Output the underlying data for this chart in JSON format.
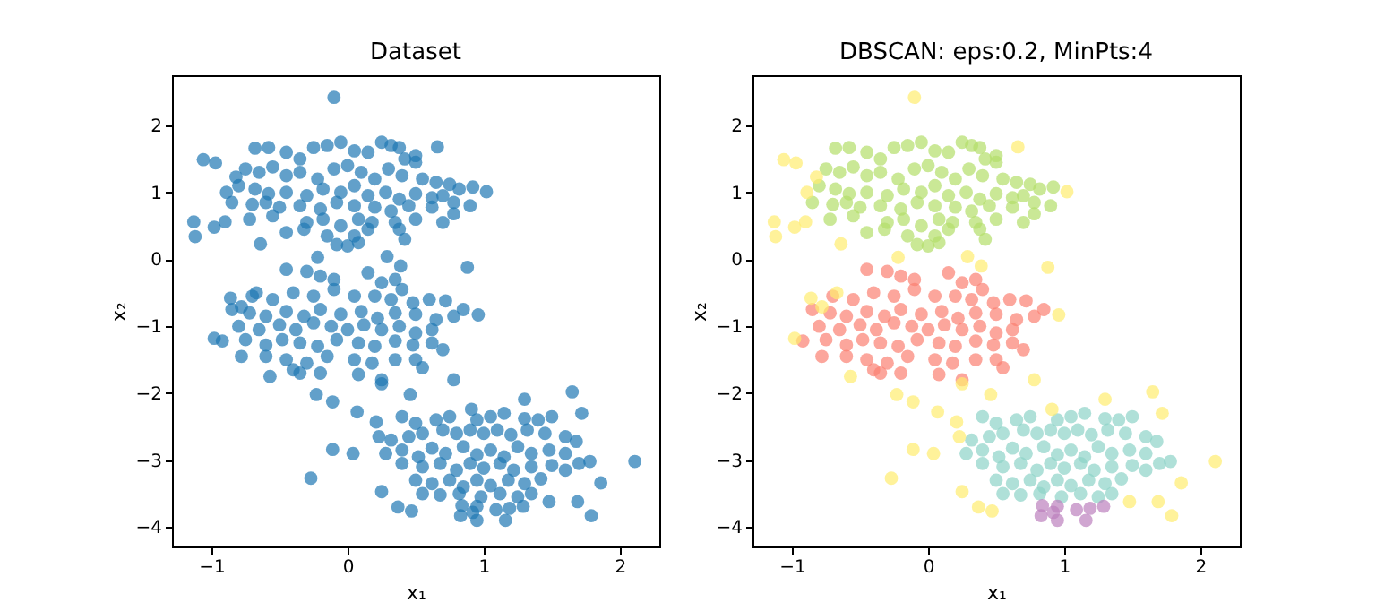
{
  "chart_data": [
    {
      "type": "scatter",
      "title": "Dataset",
      "xlabel": "x₁",
      "ylabel": "x₂",
      "xlim": [
        -1.29,
        2.29
      ],
      "ylim": [
        -4.29,
        2.75
      ],
      "xticks": [
        -1,
        0,
        1,
        2
      ],
      "yticks": [
        -4,
        -3,
        -2,
        -1,
        0,
        1,
        2
      ],
      "grid": false,
      "legend": false,
      "marker": "circle",
      "series": [
        {
          "color": "#1f77b4",
          "x": [
            -0.68,
            -0.58,
            -0.45,
            -0.35,
            -0.25,
            -0.15,
            -0.05,
            0.05,
            0.15,
            0.25,
            0.32,
            0.38,
            0.5,
            0.5,
            0.42,
            -0.75,
            -0.65,
            -0.55,
            -0.45,
            -0.35,
            -0.22,
            -0.1,
            0.0,
            0.1,
            0.2,
            0.3,
            0.4,
            0.55,
            0.65,
            0.75,
            0.82,
            0.92,
            -0.8,
            -0.68,
            -0.58,
            -0.45,
            -0.3,
            -0.18,
            -0.05,
            0.05,
            0.15,
            0.28,
            0.38,
            0.5,
            0.62,
            0.7,
            -0.85,
            -0.7,
            -0.6,
            -0.5,
            -0.35,
            -0.2,
            -0.08,
            0.05,
            0.2,
            0.32,
            0.45,
            0.62,
            0.78,
            0.9,
            -0.72,
            -0.55,
            -0.3,
            -0.18,
            -0.05,
            0.08,
            0.18,
            0.35,
            0.5,
            0.7,
            0.78,
            -0.45,
            -0.32,
            -0.15,
            0.05,
            0.15,
            0.38,
            0.42,
            0.0,
            -0.08,
            0.08,
            -0.45,
            -0.3,
            -0.2,
            -0.1,
            0.15,
            0.25,
            0.35,
            0.4,
            -0.7,
            -0.55,
            -0.4,
            -0.25,
            -0.1,
            0.05,
            0.2,
            0.32,
            0.48,
            0.6,
            0.72,
            0.85,
            -0.85,
            -0.72,
            -0.6,
            -0.45,
            -0.32,
            -0.2,
            -0.05,
            0.1,
            0.22,
            0.35,
            0.5,
            0.65,
            0.78,
            -0.8,
            -0.65,
            -0.5,
            -0.38,
            -0.25,
            -0.12,
            0.0,
            0.12,
            0.25,
            0.38,
            0.5,
            0.62,
            -0.92,
            -0.75,
            -0.6,
            -0.48,
            -0.35,
            -0.22,
            -0.08,
            0.08,
            0.2,
            0.35,
            0.48,
            0.62,
            0.7,
            -0.78,
            -0.6,
            -0.45,
            -0.3,
            -0.15,
            0.05,
            0.18,
            0.35,
            0.5,
            0.55,
            -0.4,
            -0.2,
            0.08,
            0.25,
            -0.35,
            0.4,
            0.5,
            0.65,
            0.75,
            0.95,
            1.05,
            1.15,
            1.3,
            1.4,
            1.5,
            0.32,
            0.45,
            0.55,
            0.7,
            0.8,
            0.9,
            1.0,
            1.1,
            1.2,
            1.32,
            1.45,
            1.6,
            1.68,
            0.28,
            0.4,
            0.52,
            0.62,
            0.72,
            0.85,
            0.95,
            1.05,
            1.15,
            1.25,
            1.35,
            1.48,
            1.6,
            1.7,
            1.78,
            0.4,
            0.55,
            0.68,
            0.8,
            0.9,
            1.0,
            1.12,
            1.22,
            1.35,
            1.5,
            1.6,
            0.5,
            0.62,
            0.75,
            0.85,
            0.95,
            1.05,
            1.18,
            1.3,
            1.42,
            0.55,
            0.68,
            0.82,
            0.98,
            1.12,
            1.25,
            1.35,
            0.84,
            0.83,
            0.95,
            0.95,
            1.09,
            1.16,
            1.19,
            1.29,
            0.92,
            -0.1,
            -1.06,
            -0.97,
            -0.82,
            -0.89,
            -1.13,
            -1.12,
            -0.98,
            -0.9,
            -0.64,
            0.66,
            1.02,
            -0.22,
            0.29,
            0.39,
            0.88,
            -0.67,
            -0.86,
            -0.78,
            0.96,
            -0.98,
            -0.57,
            0.25,
            0.78,
            -0.23,
            -0.11,
            0.46,
            0.07,
            0.21,
            0.23,
            0.91,
            1.3,
            1.65,
            1.72,
            -0.11,
            0.04,
            -0.27,
            0.25,
            0.37,
            0.47,
            1.48,
            1.69,
            1.79,
            1.86,
            2.11
          ],
          "values": [
            1.66,
            1.67,
            1.6,
            1.5,
            1.67,
            1.7,
            1.75,
            1.62,
            1.6,
            1.75,
            1.7,
            1.67,
            1.55,
            1.45,
            1.5,
            1.35,
            1.3,
            1.38,
            1.25,
            1.3,
            1.2,
            1.35,
            1.4,
            1.3,
            1.2,
            1.35,
            1.25,
            1.2,
            1.15,
            1.12,
            1.05,
            1.08,
            1.1,
            1.05,
            0.98,
            1.0,
            0.95,
            1.05,
            1.0,
            1.1,
            0.95,
            1.0,
            0.9,
            0.98,
            0.92,
            0.95,
            0.85,
            0.82,
            0.85,
            0.78,
            0.8,
            0.75,
            0.85,
            0.8,
            0.78,
            0.72,
            0.8,
            0.78,
            0.85,
            0.8,
            0.6,
            0.65,
            0.55,
            0.6,
            0.5,
            0.6,
            0.55,
            0.55,
            0.6,
            0.55,
            0.68,
            0.4,
            0.45,
            0.35,
            0.35,
            0.45,
            0.45,
            0.3,
            0.2,
            0.22,
            0.25,
            -0.15,
            -0.18,
            -0.25,
            -0.3,
            -0.2,
            -0.35,
            -0.3,
            -0.45,
            -0.55,
            -0.6,
            -0.5,
            -0.55,
            -0.45,
            -0.55,
            -0.55,
            -0.6,
            -0.65,
            -0.6,
            -0.62,
            -0.75,
            -0.75,
            -0.8,
            -0.85,
            -0.78,
            -0.85,
            -0.75,
            -0.82,
            -0.78,
            -0.88,
            -0.8,
            -0.82,
            -0.9,
            -0.85,
            -1.0,
            -1.05,
            -0.98,
            -1.05,
            -0.95,
            -1.0,
            -1.05,
            -0.98,
            -1.05,
            -1.0,
            -1.1,
            -1.05,
            -1.22,
            -1.2,
            -1.28,
            -1.2,
            -1.25,
            -1.3,
            -1.2,
            -1.25,
            -1.3,
            -1.22,
            -1.28,
            -1.25,
            -1.35,
            -1.45,
            -1.45,
            -1.5,
            -1.55,
            -1.45,
            -1.5,
            -1.55,
            -1.5,
            -1.5,
            -1.62,
            -1.65,
            -1.7,
            -1.72,
            -1.8,
            -1.7,
            -2.35,
            -2.45,
            -2.4,
            -2.35,
            -2.4,
            -2.35,
            -2.3,
            -2.38,
            -2.4,
            -2.35,
            -2.7,
            -2.65,
            -2.6,
            -2.55,
            -2.6,
            -2.55,
            -2.6,
            -2.55,
            -2.62,
            -2.55,
            -2.6,
            -2.65,
            -2.72,
            -2.9,
            -2.85,
            -2.95,
            -2.82,
            -2.9,
            -2.8,
            -2.92,
            -2.85,
            -2.95,
            -2.8,
            -2.9,
            -2.85,
            -2.9,
            -3.05,
            -3.02,
            -3.05,
            -3.1,
            -3.05,
            -3.15,
            -3.05,
            -3.12,
            -3.05,
            -3.15,
            -3.1,
            -3.08,
            -3.15,
            -3.3,
            -3.35,
            -3.3,
            -3.4,
            -3.3,
            -3.38,
            -3.3,
            -3.35,
            -3.28,
            -3.5,
            -3.52,
            -3.5,
            -3.55,
            -3.5,
            -3.55,
            -3.5,
            -3.68,
            -3.83,
            -3.69,
            -3.9,
            -3.74,
            -3.9,
            -3.72,
            -3.69,
            -3.78,
            2.42,
            1.49,
            1.44,
            1.23,
            1.0,
            0.56,
            0.34,
            0.48,
            0.56,
            0.23,
            1.68,
            1.01,
            0.03,
            0.04,
            -0.1,
            -0.12,
            -0.5,
            -0.58,
            -0.71,
            -0.83,
            -1.18,
            -1.75,
            -1.86,
            -1.8,
            -2.02,
            -2.13,
            -2.02,
            -2.28,
            -2.43,
            -2.65,
            -2.24,
            -2.09,
            -1.98,
            -2.3,
            -2.84,
            -2.9,
            -3.27,
            -3.47,
            -3.7,
            -3.76,
            -3.62,
            -3.62,
            -3.83,
            -3.34,
            -3.02
          ]
        }
      ]
    },
    {
      "type": "scatter",
      "title": "DBSCAN: eps:0.2, MinPts:4",
      "xlabel": "x₁",
      "ylabel": "x₂",
      "xlim": [
        -1.29,
        2.29
      ],
      "ylim": [
        -4.29,
        2.75
      ],
      "xticks": [
        -1,
        0,
        1,
        2
      ],
      "yticks": [
        -4,
        -3,
        -2,
        -1,
        0,
        1,
        2
      ],
      "grid": false,
      "legend": false,
      "marker": "circle",
      "series": [
        {
          "color": "#b3de69",
          "x": [
            -0.68,
            -0.58,
            -0.45,
            -0.35,
            -0.25,
            -0.15,
            -0.05,
            0.05,
            0.15,
            0.25,
            0.32,
            0.38,
            0.5,
            0.5,
            0.42,
            -0.75,
            -0.65,
            -0.55,
            -0.45,
            -0.35,
            -0.22,
            -0.1,
            0.0,
            0.1,
            0.2,
            0.3,
            0.4,
            0.55,
            0.65,
            0.75,
            0.82,
            0.92,
            -0.8,
            -0.68,
            -0.58,
            -0.45,
            -0.3,
            -0.18,
            -0.05,
            0.05,
            0.15,
            0.28,
            0.38,
            0.5,
            0.62,
            0.7,
            -0.85,
            -0.7,
            -0.6,
            -0.5,
            -0.35,
            -0.2,
            -0.08,
            0.05,
            0.2,
            0.32,
            0.45,
            0.62,
            0.78,
            0.9,
            -0.72,
            -0.55,
            -0.3,
            -0.18,
            -0.05,
            0.08,
            0.18,
            0.35,
            0.5,
            0.7,
            0.78,
            -0.45,
            -0.32,
            -0.15,
            0.05,
            0.15,
            0.38,
            0.42,
            0.0,
            -0.08,
            0.08
          ],
          "values": [
            1.66,
            1.67,
            1.6,
            1.5,
            1.67,
            1.7,
            1.75,
            1.62,
            1.6,
            1.75,
            1.7,
            1.67,
            1.55,
            1.45,
            1.5,
            1.35,
            1.3,
            1.38,
            1.25,
            1.3,
            1.2,
            1.35,
            1.4,
            1.3,
            1.2,
            1.35,
            1.25,
            1.2,
            1.15,
            1.12,
            1.05,
            1.08,
            1.1,
            1.05,
            0.98,
            1.0,
            0.95,
            1.05,
            1.0,
            1.1,
            0.95,
            1.0,
            0.9,
            0.98,
            0.92,
            0.95,
            0.85,
            0.82,
            0.85,
            0.78,
            0.8,
            0.75,
            0.85,
            0.8,
            0.78,
            0.72,
            0.8,
            0.78,
            0.85,
            0.8,
            0.6,
            0.65,
            0.55,
            0.6,
            0.5,
            0.6,
            0.55,
            0.55,
            0.6,
            0.55,
            0.68,
            0.4,
            0.45,
            0.35,
            0.35,
            0.45,
            0.45,
            0.3,
            0.2,
            0.22,
            0.25
          ]
        },
        {
          "color": "#fb8072",
          "x": [
            -0.45,
            -0.3,
            -0.2,
            -0.1,
            0.15,
            0.25,
            0.35,
            0.4,
            -0.7,
            -0.55,
            -0.4,
            -0.25,
            -0.1,
            0.05,
            0.2,
            0.32,
            0.48,
            0.6,
            0.72,
            0.85,
            -0.85,
            -0.72,
            -0.6,
            -0.45,
            -0.32,
            -0.2,
            -0.05,
            0.1,
            0.22,
            0.35,
            0.5,
            0.65,
            0.78,
            -0.8,
            -0.65,
            -0.5,
            -0.38,
            -0.25,
            -0.12,
            0.0,
            0.12,
            0.25,
            0.38,
            0.5,
            0.62,
            -0.92,
            -0.75,
            -0.6,
            -0.48,
            -0.35,
            -0.22,
            -0.08,
            0.08,
            0.2,
            0.35,
            0.48,
            0.62,
            0.7,
            -0.78,
            -0.6,
            -0.45,
            -0.3,
            -0.15,
            0.05,
            0.18,
            0.35,
            0.5,
            0.55,
            -0.4,
            -0.2,
            0.08,
            0.25,
            -0.35
          ],
          "values": [
            -0.15,
            -0.18,
            -0.25,
            -0.3,
            -0.2,
            -0.35,
            -0.3,
            -0.45,
            -0.55,
            -0.6,
            -0.5,
            -0.55,
            -0.45,
            -0.55,
            -0.55,
            -0.6,
            -0.65,
            -0.6,
            -0.62,
            -0.75,
            -0.75,
            -0.8,
            -0.85,
            -0.78,
            -0.85,
            -0.75,
            -0.82,
            -0.78,
            -0.88,
            -0.8,
            -0.82,
            -0.9,
            -0.85,
            -1.0,
            -1.05,
            -0.98,
            -1.05,
            -0.95,
            -1.0,
            -1.05,
            -0.98,
            -1.05,
            -1.0,
            -1.1,
            -1.05,
            -1.22,
            -1.2,
            -1.28,
            -1.2,
            -1.25,
            -1.3,
            -1.2,
            -1.25,
            -1.3,
            -1.22,
            -1.28,
            -1.25,
            -1.35,
            -1.45,
            -1.45,
            -1.5,
            -1.55,
            -1.45,
            -1.5,
            -1.55,
            -1.5,
            -1.5,
            -1.62,
            -1.65,
            -1.7,
            -1.72,
            -1.8,
            -1.7
          ]
        },
        {
          "color": "#8dd3c7",
          "x": [
            0.4,
            0.5,
            0.65,
            0.75,
            0.95,
            1.05,
            1.15,
            1.3,
            1.4,
            1.5,
            0.32,
            0.45,
            0.55,
            0.7,
            0.8,
            0.9,
            1.0,
            1.1,
            1.2,
            1.32,
            1.45,
            1.6,
            1.68,
            0.28,
            0.4,
            0.52,
            0.62,
            0.72,
            0.85,
            0.95,
            1.05,
            1.15,
            1.25,
            1.35,
            1.48,
            1.6,
            1.7,
            1.78,
            0.4,
            0.55,
            0.68,
            0.8,
            0.9,
            1.0,
            1.12,
            1.22,
            1.35,
            1.5,
            1.6,
            0.5,
            0.62,
            0.75,
            0.85,
            0.95,
            1.05,
            1.18,
            1.3,
            1.42,
            0.55,
            0.68,
            0.82,
            0.98,
            1.12,
            1.25,
            1.35
          ],
          "values": [
            -2.35,
            -2.45,
            -2.4,
            -2.35,
            -2.4,
            -2.35,
            -2.3,
            -2.38,
            -2.4,
            -2.35,
            -2.7,
            -2.65,
            -2.6,
            -2.55,
            -2.6,
            -2.55,
            -2.6,
            -2.55,
            -2.62,
            -2.55,
            -2.6,
            -2.65,
            -2.72,
            -2.9,
            -2.85,
            -2.95,
            -2.82,
            -2.9,
            -2.8,
            -2.92,
            -2.85,
            -2.95,
            -2.8,
            -2.9,
            -2.85,
            -2.9,
            -3.05,
            -3.02,
            -3.05,
            -3.1,
            -3.05,
            -3.15,
            -3.05,
            -3.12,
            -3.05,
            -3.15,
            -3.1,
            -3.08,
            -3.15,
            -3.3,
            -3.35,
            -3.3,
            -3.4,
            -3.3,
            -3.38,
            -3.3,
            -3.35,
            -3.28,
            -3.5,
            -3.52,
            -3.5,
            -3.55,
            -3.5,
            -3.55,
            -3.5
          ]
        },
        {
          "color": "#bc80bd",
          "x": [
            0.84,
            0.83,
            0.95,
            0.95,
            1.09,
            1.16,
            1.19,
            1.29,
            0.92
          ],
          "values": [
            -3.68,
            -3.83,
            -3.69,
            -3.9,
            -3.74,
            -3.9,
            -3.72,
            -3.69,
            -3.78
          ]
        },
        {
          "color": "#ffed6f",
          "x": [
            -0.1,
            -1.06,
            -0.97,
            -0.82,
            -0.89,
            -1.13,
            -1.12,
            -0.98,
            -0.9,
            -0.64,
            0.66,
            1.02,
            -0.22,
            0.29,
            0.39,
            0.88,
            -0.67,
            -0.86,
            -0.78,
            0.96,
            -0.98,
            -0.57,
            0.25,
            0.78,
            -0.23,
            -0.11,
            0.46,
            0.07,
            0.21,
            0.23,
            0.91,
            1.3,
            1.65,
            1.72,
            -0.11,
            0.04,
            -0.27,
            0.25,
            0.37,
            0.47,
            1.48,
            1.69,
            1.79,
            1.86,
            2.11
          ],
          "values": [
            2.42,
            1.49,
            1.44,
            1.23,
            1.0,
            0.56,
            0.34,
            0.48,
            0.56,
            0.23,
            1.68,
            1.01,
            0.03,
            0.04,
            -0.1,
            -0.12,
            -0.5,
            -0.58,
            -0.71,
            -0.83,
            -1.18,
            -1.75,
            -1.86,
            -1.8,
            -2.02,
            -2.13,
            -2.02,
            -2.28,
            -2.43,
            -2.65,
            -2.24,
            -2.09,
            -1.98,
            -2.3,
            -2.84,
            -2.9,
            -3.27,
            -3.47,
            -3.7,
            -3.76,
            -3.62,
            -3.62,
            -3.83,
            -3.34,
            -3.02
          ]
        }
      ]
    }
  ]
}
